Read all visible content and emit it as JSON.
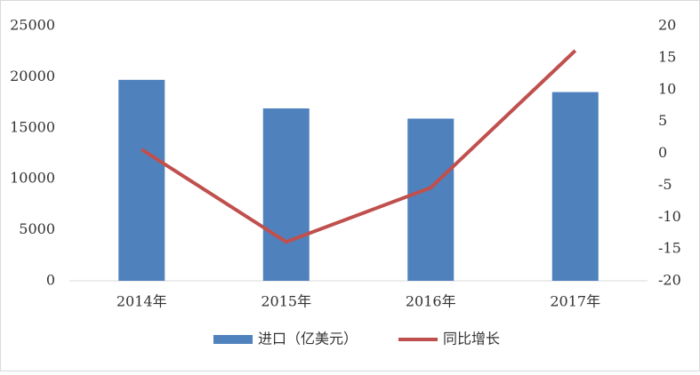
{
  "chart_data": {
    "type": "bar",
    "categories": [
      "2014年",
      "2015年",
      "2016年",
      "2017年"
    ],
    "series": [
      {
        "name": "进口（亿美元）",
        "type": "bar",
        "color": "#4f81bd",
        "axis": "y",
        "values": [
          19700,
          16900,
          15900,
          18500
        ]
      },
      {
        "name": "同比增长",
        "type": "line",
        "color": "#c0504d",
        "axis": "y2",
        "values": [
          0.6,
          -13.9,
          -5.4,
          16.1
        ]
      }
    ],
    "ylim": [
      0,
      25000
    ],
    "yticks": [
      0,
      5000,
      10000,
      15000,
      20000,
      25000
    ],
    "y2lim": [
      -20,
      20
    ],
    "y2ticks": [
      -20,
      -15,
      -10,
      -5,
      0,
      5,
      10,
      15,
      20
    ],
    "grid": false,
    "legend": "bottom"
  }
}
